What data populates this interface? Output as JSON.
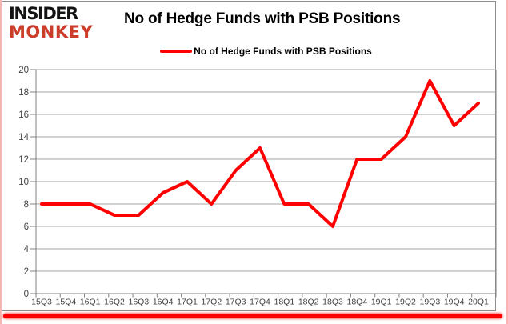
{
  "logo": {
    "line1": "INSIDER",
    "line2": "MONKEY"
  },
  "header": {
    "title": "No of Hedge Funds with PSB Positions"
  },
  "legend": {
    "label": "No of Hedge Funds with PSB Positions"
  },
  "colors": {
    "line": "#fe0000",
    "grid": "#a6a6a6",
    "axis": "#808080",
    "tick_label": "#404040",
    "logo_red": "#cd3e2a",
    "bottom_rule": "#fe0000"
  },
  "chart_data": {
    "type": "line",
    "title": "No of Hedge Funds with PSB Positions",
    "categories": [
      "15Q3",
      "15Q4",
      "16Q1",
      "16Q2",
      "16Q3",
      "16Q4",
      "17Q1",
      "17Q2",
      "17Q3",
      "17Q4",
      "18Q1",
      "18Q2",
      "18Q3",
      "18Q4",
      "19Q1",
      "19Q2",
      "19Q3",
      "19Q4",
      "20Q1"
    ],
    "series": [
      {
        "name": "No of Hedge Funds with PSB Positions",
        "color": "#fe0000",
        "values": [
          8,
          8,
          8,
          7,
          7,
          9,
          10,
          8,
          11,
          13,
          8,
          8,
          6,
          12,
          12,
          14,
          19,
          15,
          17
        ]
      }
    ],
    "xlabel": "",
    "ylabel": "",
    "ylim": [
      0,
      20
    ],
    "yticks": [
      0,
      2,
      4,
      6,
      8,
      10,
      12,
      14,
      16,
      18,
      20
    ],
    "grid": true,
    "legend_position": "top"
  }
}
